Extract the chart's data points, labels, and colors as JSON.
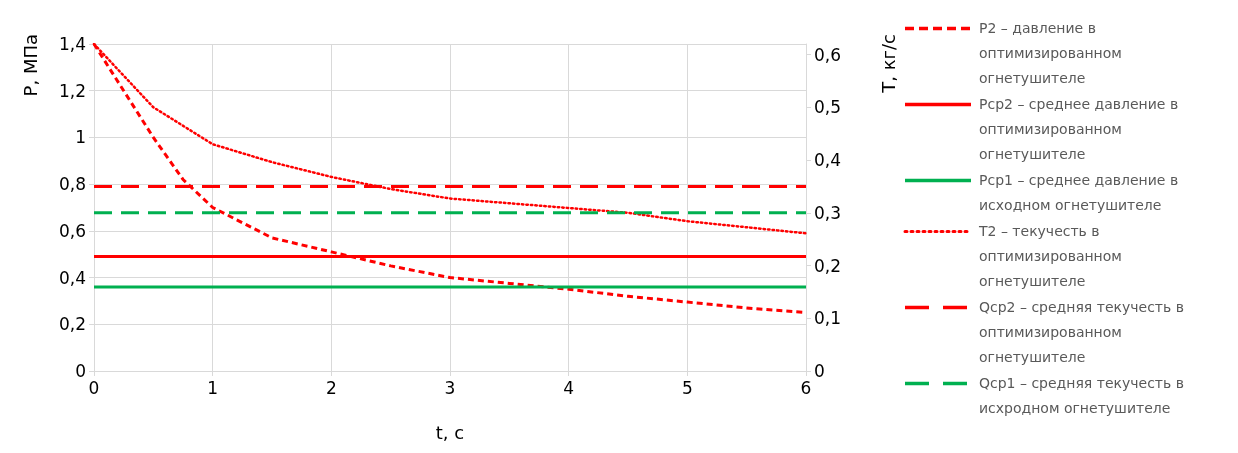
{
  "chart_data": {
    "type": "line",
    "xlabel": "t, с",
    "ylabel": "P, МПа",
    "y2label": "T, кг/с",
    "xlim": [
      0,
      6
    ],
    "xticks": [
      0,
      1,
      2,
      3,
      4,
      5,
      6
    ],
    "ylim": [
      0,
      1.4
    ],
    "yticks": [
      0,
      {
        "value": 0.2,
        "label": "0,2"
      },
      {
        "value": 0.4,
        "label": "0,4"
      },
      {
        "value": 0.6,
        "label": "0,6"
      },
      {
        "value": 0.8,
        "label": "0,8"
      },
      1,
      {
        "value": 1.2,
        "label": "1,2"
      },
      {
        "value": 1.4,
        "label": "1,4"
      }
    ],
    "y2lim": [
      0,
      0.62
    ],
    "y2ticks": [
      0,
      {
        "value": 0.1,
        "label": "0,1"
      },
      {
        "value": 0.2,
        "label": "0,2"
      },
      {
        "value": 0.3,
        "label": "0,3"
      },
      {
        "value": 0.4,
        "label": "0,4"
      },
      {
        "value": 0.5,
        "label": "0,5"
      },
      {
        "value": 0.6,
        "label": "0,6"
      }
    ],
    "grid": true,
    "legend": "right",
    "marker": "none",
    "series": [
      {
        "name": "P2 – давление в оптимизированном огнетушителе",
        "color": "#ff0000",
        "line_style": "dashed",
        "x": [
          0,
          0.25,
          0.5,
          0.75,
          1,
          1.5,
          2,
          2.5,
          3,
          3.5,
          4,
          4.5,
          5,
          5.5,
          6
        ],
        "values": [
          1.4,
          1.2,
          1.0,
          0.82,
          0.7,
          0.57,
          0.51,
          0.45,
          0.4,
          0.375,
          0.35,
          0.32,
          0.295,
          0.27,
          0.25
        ]
      },
      {
        "name": "Pср2 – среднее давление в оптимизированном огнетушителе",
        "color": "#ff0000",
        "line_style": "solid",
        "x": [
          0,
          6
        ],
        "values": [
          0.49,
          0.49
        ]
      },
      {
        "name": "Pср1 – среднее давление в исходном огнетушителе",
        "color": "#00b050",
        "line_style": "solid",
        "x": [
          0,
          6
        ],
        "values": [
          0.36,
          0.36
        ]
      },
      {
        "name": "T2 – текучесть в оптимизированном огнетушителе",
        "color": "#ff0000",
        "line_style": "dotted",
        "axis": "y2",
        "x": [
          0,
          0.25,
          0.5,
          1,
          1.5,
          2,
          2.5,
          3,
          4,
          4.5,
          5,
          6
        ],
        "values": [
          0.62,
          0.56,
          0.5,
          0.43,
          0.396,
          0.368,
          0.345,
          0.327,
          0.309,
          0.3,
          0.284,
          0.261
        ]
      },
      {
        "name": "Qср2 – средняя текучесть в оптимизированном огнетушителе",
        "color": "#ff0000",
        "line_style": "dashed",
        "axis": "y2",
        "x": [
          0,
          6
        ],
        "values": [
          0.35,
          0.35
        ]
      },
      {
        "name": "Qср1 – средняя текучесть в исхродном огнетушителе",
        "color": "#00b050",
        "line_style": "dashed",
        "axis": "y2",
        "x": [
          0,
          6
        ],
        "values": [
          0.3,
          0.3
        ]
      }
    ]
  }
}
